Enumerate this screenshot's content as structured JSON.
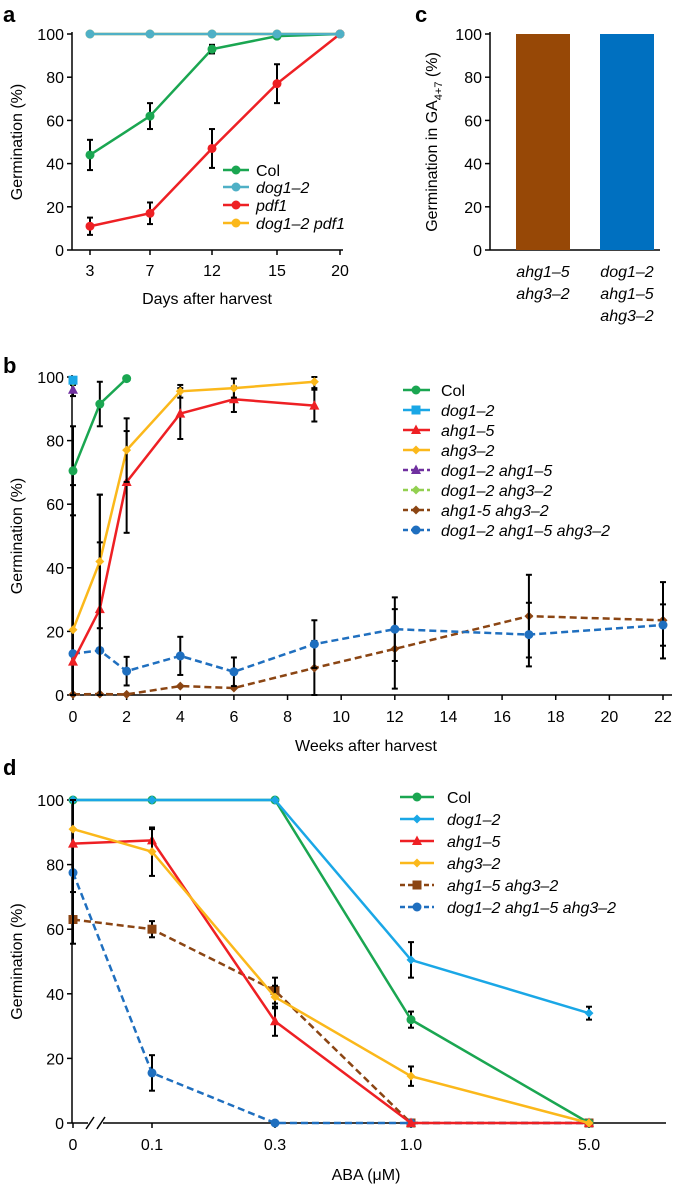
{
  "panel_labels": {
    "a": "a",
    "b": "b",
    "c": "c",
    "d": "d"
  },
  "colors": {
    "green": "#1aa651",
    "cyan": "#4fb0c6",
    "red": "#ee2024",
    "orange": "#fbb81b",
    "blue": "#1aa7e6",
    "purple": "#7030a0",
    "lightgreen": "#92d050",
    "brown": "#8b4513",
    "darkblue": "#1f6fbf",
    "barbrown": "#974806",
    "barblue": "#0070c0"
  },
  "chart_data": [
    {
      "id": "a",
      "type": "line",
      "xlabel": "Days after harvest",
      "ylabel": "Germination (%)",
      "categories": [
        "3",
        "7",
        "12",
        "15",
        "20"
      ],
      "yticks": [
        0,
        20,
        40,
        60,
        80,
        100
      ],
      "ylim": [
        0,
        100
      ],
      "legend_position": "center-right",
      "series": [
        {
          "name": "Col",
          "color": "green",
          "values": [
            44,
            62,
            93,
            99,
            100
          ],
          "errors": [
            7,
            6,
            2,
            1,
            0
          ]
        },
        {
          "name": "dog1–2",
          "color": "cyan",
          "values": [
            100,
            100,
            100,
            100,
            100
          ],
          "errors": [
            0,
            0,
            0,
            0,
            0
          ]
        },
        {
          "name": "pdf1",
          "color": "red",
          "values": [
            11,
            17,
            47,
            77,
            100
          ],
          "errors": [
            4,
            5,
            9,
            9,
            0
          ]
        },
        {
          "name": "dog1–2 pdf1",
          "color": "orange",
          "values": [
            100,
            100,
            100,
            100,
            100
          ],
          "errors": [
            0,
            0,
            0,
            0,
            0
          ]
        }
      ]
    },
    {
      "id": "c",
      "type": "bar",
      "ylabel_main": "Germination in GA",
      "ylabel_sub": "4+7",
      "ylabel_unit": " (%)",
      "categories": [
        [
          "ahg1–5",
          "ahg3–2"
        ],
        [
          "dog1–2",
          "ahg1–5",
          "ahg3–2"
        ]
      ],
      "values": [
        100,
        100
      ],
      "bar_colors": [
        "barbrown",
        "barblue"
      ],
      "yticks": [
        0,
        20,
        40,
        60,
        80,
        100
      ],
      "ylim": [
        0,
        100
      ]
    },
    {
      "id": "b",
      "type": "line",
      "xlabel": "Weeks after harvest",
      "ylabel": "Germination (%)",
      "xlim": [
        0,
        22
      ],
      "xticks": [
        0,
        2,
        4,
        6,
        8,
        10,
        12,
        14,
        16,
        18,
        20,
        22
      ],
      "ylim": [
        0,
        100
      ],
      "yticks": [
        0,
        20,
        40,
        60,
        80,
        100
      ],
      "legend_position": "top-right",
      "series": [
        {
          "name": "Col",
          "color": "green",
          "marker": "circle",
          "dash": false,
          "x": [
            0,
            1,
            2
          ],
          "y": [
            70.5,
            91.5,
            99.5
          ],
          "err": [
            14,
            7,
            0
          ]
        },
        {
          "name": "dog1–2",
          "color": "blue",
          "marker": "square",
          "dash": false,
          "x": [
            0
          ],
          "y": [
            99
          ],
          "err": [
            0
          ]
        },
        {
          "name": "ahg1–5",
          "color": "red",
          "marker": "triangle",
          "dash": false,
          "x": [
            0,
            1,
            2,
            4,
            6,
            9
          ],
          "y": [
            10.5,
            27,
            67,
            88.5,
            93,
            91
          ],
          "err": [
            0,
            36,
            16,
            8,
            4,
            5
          ]
        },
        {
          "name": "ahg3–2",
          "color": "orange",
          "marker": "diamond",
          "dash": false,
          "x": [
            0,
            1,
            2,
            4,
            6,
            9
          ],
          "y": [
            20.5,
            42,
            77,
            95.5,
            96.5,
            98.5
          ],
          "err": [
            0,
            21,
            10,
            2,
            3,
            2
          ]
        },
        {
          "name": "dog1–2 ahg1–5",
          "color": "purple",
          "marker": "triangle",
          "dash": true,
          "x": [
            0
          ],
          "y": [
            96
          ],
          "err": [
            2
          ]
        },
        {
          "name": "dog1–2 ahg3–2",
          "color": "lightgreen",
          "marker": "diamond",
          "dash": true,
          "x": [
            0
          ],
          "y": [
            98.5
          ],
          "err": [
            1
          ]
        },
        {
          "name": "ahg1-5 ahg3–2",
          "color": "brown",
          "marker": "diamond",
          "dash": true,
          "x": [
            0,
            1,
            2,
            4,
            6,
            9,
            12,
            17,
            22
          ],
          "y": [
            0.2,
            0.3,
            0.2,
            2.8,
            2.2,
            8.5,
            14.5,
            24.8,
            23.5
          ],
          "err": [
            0,
            0,
            0,
            0,
            0,
            8.5,
            12.5,
            13,
            12
          ]
        },
        {
          "name": "dog1–2 ahg1–5 ahg3–2",
          "color": "darkblue",
          "marker": "circle",
          "dash": true,
          "x": [
            0,
            1,
            2,
            4,
            6,
            9,
            12,
            17,
            22
          ],
          "y": [
            13,
            14,
            7.5,
            12.3,
            7.3,
            16,
            20.7,
            19,
            22
          ],
          "err": [
            53,
            34,
            4.5,
            6,
            4.5,
            7.5,
            10,
            10,
            6.5
          ]
        }
      ]
    },
    {
      "id": "d",
      "type": "line",
      "xlabel": "ABA (μM)",
      "ylabel": "Germination (%)",
      "categories": [
        "0",
        "0.1",
        "0.3",
        "1.0",
        "5.0"
      ],
      "ylim": [
        0,
        100
      ],
      "yticks": [
        0,
        20,
        40,
        60,
        80,
        100
      ],
      "legend_position": "top-right",
      "series": [
        {
          "name": "Col",
          "color": "green",
          "marker": "circle",
          "dash": false,
          "values": [
            100,
            100,
            100,
            32,
            0
          ],
          "err": [
            0,
            0,
            0,
            2.5,
            0
          ]
        },
        {
          "name": "dog1–2",
          "color": "blue",
          "marker": "diamond",
          "dash": false,
          "values": [
            100,
            100,
            100,
            50.5,
            34
          ],
          "err": [
            0,
            0,
            0,
            5.5,
            2
          ]
        },
        {
          "name": "ahg1–5",
          "color": "red",
          "marker": "triangle",
          "dash": false,
          "values": [
            86.5,
            87.5,
            31.5,
            0,
            0
          ],
          "err": [
            15,
            3.5,
            4.5,
            0,
            0
          ]
        },
        {
          "name": "ahg3–2",
          "color": "orange",
          "marker": "diamond",
          "dash": false,
          "values": [
            91,
            84,
            39,
            14.5,
            0
          ],
          "err": [
            0,
            7.5,
            3.5,
            3,
            0
          ]
        },
        {
          "name": "ahg1–5 ahg3–2",
          "color": "brown",
          "marker": "square",
          "dash": true,
          "values": [
            63,
            60,
            41,
            0,
            0
          ],
          "err": [
            0,
            2.5,
            4,
            0,
            0
          ]
        },
        {
          "name": "dog1–2 ahg1–5 ahg3–2",
          "color": "darkblue",
          "marker": "circle",
          "dash": true,
          "values": [
            77.5,
            15.5,
            0,
            0,
            0
          ],
          "err": [
            22,
            5.5,
            0,
            0,
            0
          ]
        }
      ]
    }
  ]
}
